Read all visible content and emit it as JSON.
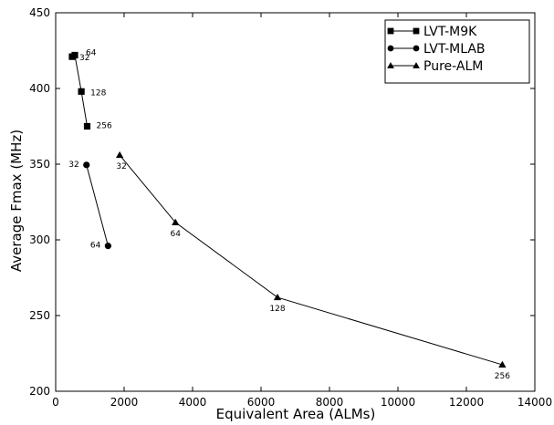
{
  "chart_data": {
    "type": "line",
    "xlabel": "Equivalent Area (ALMs)",
    "ylabel": "Average Fmax (MHz)",
    "xlim": [
      0,
      14000
    ],
    "ylim": [
      200,
      450
    ],
    "xticks": [
      0,
      2000,
      4000,
      6000,
      8000,
      10000,
      12000,
      14000
    ],
    "yticks": [
      200,
      250,
      300,
      350,
      400,
      450
    ],
    "legend_position": "top-right",
    "grid": false,
    "series": [
      {
        "name": "LVT-M9K",
        "marker": "square",
        "x": [
          480,
          560,
          750,
          920
        ],
        "y": [
          421,
          422,
          398,
          375
        ],
        "labels": [
          "32",
          "64",
          "128",
          "256"
        ]
      },
      {
        "name": "LVT-MLAB",
        "marker": "circle",
        "x": [
          900,
          1530
        ],
        "y": [
          349.5,
          296
        ],
        "labels": [
          "32",
          "64"
        ]
      },
      {
        "name": "Pure-ALM",
        "marker": "triangle",
        "x": [
          1870,
          3500,
          6480,
          13050
        ],
        "y": [
          356,
          311.5,
          262,
          217.5
        ],
        "labels": [
          "32",
          "64",
          "128",
          "256"
        ]
      }
    ]
  }
}
